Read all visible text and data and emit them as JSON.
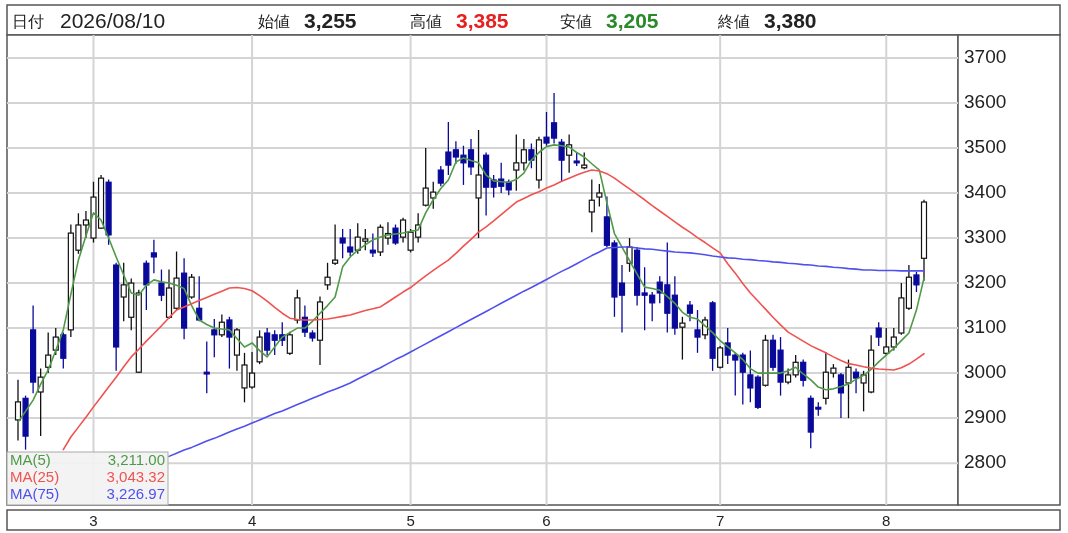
{
  "chart_data": {
    "type": "candlestick",
    "categories": [
      null,
      null,
      null,
      null,
      null,
      null,
      null,
      null,
      null,
      null,
      "3",
      null,
      null,
      null,
      null,
      null,
      null,
      null,
      null,
      null,
      null,
      null,
      null,
      null,
      null,
      null,
      null,
      null,
      null,
      null,
      null,
      "4",
      null,
      null,
      null,
      null,
      null,
      null,
      null,
      null,
      null,
      null,
      null,
      null,
      null,
      null,
      null,
      null,
      null,
      null,
      null,
      null,
      "5",
      null,
      null,
      null,
      null,
      null,
      null,
      null,
      null,
      null,
      null,
      null,
      null,
      null,
      null,
      null,
      null,
      null,
      "6",
      null,
      null,
      null,
      null,
      null,
      null,
      null,
      null,
      null,
      null,
      null,
      null,
      null,
      null,
      null,
      null,
      null,
      null,
      null,
      null,
      null,
      null,
      "7",
      null,
      null,
      null,
      null,
      null,
      null,
      null,
      null,
      null,
      null,
      null,
      null,
      null,
      null,
      null,
      null,
      null,
      null,
      null,
      null,
      null,
      "8",
      null,
      null,
      null,
      null,
      null
    ],
    "ohlc": [
      [
        2896,
        2985,
        2850,
        2936
      ],
      [
        2944,
        2950,
        2830,
        2860
      ],
      [
        3096,
        3150,
        2955,
        2980
      ],
      [
        2958,
        3010,
        2860,
        2991
      ],
      [
        3013,
        3090,
        3000,
        3040
      ],
      [
        3051,
        3100,
        3040,
        3080
      ],
      [
        3085,
        3090,
        3010,
        3033
      ],
      [
        3096,
        3330,
        3080,
        3311
      ],
      [
        3273,
        3355,
        3265,
        3329
      ],
      [
        3329,
        3360,
        3300,
        3340
      ],
      [
        3300,
        3425,
        3290,
        3391
      ],
      [
        3322,
        3440,
        3320,
        3433
      ],
      [
        3424,
        3430,
        3285,
        3307
      ],
      [
        3240,
        3245,
        3005,
        3058
      ],
      [
        3169,
        3245,
        3115,
        3196
      ],
      [
        3124,
        3210,
        3095,
        3200
      ],
      [
        3002,
        3185,
        3000,
        3178
      ],
      [
        3244,
        3250,
        3140,
        3196
      ],
      [
        3267,
        3296,
        3222,
        3258
      ],
      [
        3200,
        3230,
        3160,
        3173
      ],
      [
        3124,
        3230,
        3120,
        3189
      ],
      [
        3144,
        3270,
        3140,
        3211
      ],
      [
        3222,
        3255,
        3075,
        3100
      ],
      [
        3169,
        3220,
        3165,
        3213
      ],
      [
        3144,
        3215,
        3115,
        3118
      ],
      [
        3002,
        3070,
        2955,
        2998
      ],
      [
        3096,
        3120,
        3035,
        3085
      ],
      [
        3085,
        3130,
        3080,
        3113
      ],
      [
        3118,
        3125,
        3010,
        3080
      ],
      [
        3040,
        3100,
        3005,
        3096
      ],
      [
        2967,
        3045,
        2935,
        3018
      ],
      [
        2969,
        3047,
        2965,
        3000
      ],
      [
        3025,
        3095,
        3020,
        3080
      ],
      [
        3089,
        3100,
        3040,
        3051
      ],
      [
        3085,
        3095,
        3040,
        3073
      ],
      [
        3085,
        3113,
        3060,
        3073
      ],
      [
        3044,
        3092,
        3040,
        3085
      ],
      [
        3118,
        3185,
        3110,
        3167
      ],
      [
        3124,
        3150,
        3080,
        3091
      ],
      [
        3089,
        3095,
        3070,
        3078
      ],
      [
        3073,
        3170,
        3018,
        3158
      ],
      [
        3196,
        3245,
        3185,
        3213
      ],
      [
        3244,
        3330,
        3240,
        3251
      ],
      [
        3300,
        3320,
        3255,
        3289
      ],
      [
        3280,
        3320,
        3260,
        3269
      ],
      [
        3273,
        3333,
        3265,
        3302
      ],
      [
        3293,
        3320,
        3273,
        3298
      ],
      [
        3273,
        3310,
        3258,
        3267
      ],
      [
        3269,
        3330,
        3260,
        3324
      ],
      [
        3300,
        3335,
        3285,
        3310
      ],
      [
        3322,
        3330,
        3285,
        3289
      ],
      [
        3302,
        3345,
        3290,
        3340
      ],
      [
        3273,
        3320,
        3268,
        3313
      ],
      [
        3302,
        3355,
        3290,
        3329
      ],
      [
        3373,
        3500,
        3370,
        3411
      ],
      [
        3389,
        3425,
        3365,
        3402
      ],
      [
        3451,
        3460,
        3415,
        3422
      ],
      [
        3491,
        3558,
        3440,
        3462
      ],
      [
        3496,
        3515,
        3465,
        3480
      ],
      [
        3484,
        3505,
        3418,
        3467
      ],
      [
        3496,
        3520,
        3440,
        3458
      ],
      [
        3389,
        3540,
        3300,
        3440
      ],
      [
        3484,
        3490,
        3350,
        3413
      ],
      [
        3429,
        3440,
        3390,
        3413
      ],
      [
        3431,
        3467,
        3400,
        3415
      ],
      [
        3424,
        3430,
        3395,
        3407
      ],
      [
        3451,
        3530,
        3405,
        3467
      ],
      [
        3467,
        3520,
        3450,
        3496
      ],
      [
        3496,
        3510,
        3455,
        3473
      ],
      [
        3429,
        3525,
        3410,
        3518
      ],
      [
        3524,
        3580,
        3505,
        3511
      ],
      [
        3556,
        3622,
        3510,
        3522
      ],
      [
        3513,
        3520,
        3425,
        3473
      ],
      [
        3484,
        3530,
        3445,
        3507
      ],
      [
        3471,
        3490,
        3460,
        3467
      ],
      [
        3456,
        3490,
        3453,
        3462
      ],
      [
        3358,
        3430,
        3313,
        3384
      ],
      [
        3391,
        3420,
        3370,
        3400
      ],
      [
        3347,
        3392,
        3280,
        3284
      ],
      [
        3289,
        3295,
        3125,
        3169
      ],
      [
        3200,
        3240,
        3090,
        3173
      ],
      [
        3244,
        3300,
        3225,
        3280
      ],
      [
        3273,
        3280,
        3150,
        3173
      ],
      [
        3178,
        3235,
        3095,
        3173
      ],
      [
        3173,
        3180,
        3115,
        3156
      ],
      [
        3202,
        3215,
        3155,
        3178
      ],
      [
        3196,
        3290,
        3090,
        3133
      ],
      [
        3173,
        3215,
        3085,
        3100
      ],
      [
        3102,
        3125,
        3030,
        3111
      ],
      [
        3151,
        3160,
        3115,
        3133
      ],
      [
        3096,
        3140,
        3045,
        3080
      ],
      [
        3085,
        3125,
        3075,
        3118
      ],
      [
        3156,
        3160,
        3005,
        3033
      ],
      [
        3013,
        3060,
        3010,
        3056
      ],
      [
        3067,
        3100,
        3020,
        3040
      ],
      [
        3040,
        3045,
        2950,
        3029
      ],
      [
        3040,
        3045,
        2930,
        3002
      ],
      [
        2996,
        3050,
        2935,
        2967
      ],
      [
        2991,
        2995,
        2920,
        2924
      ],
      [
        2973,
        3085,
        2970,
        3073
      ],
      [
        3073,
        3085,
        3005,
        3013
      ],
      [
        3051,
        3080,
        2950,
        2980
      ],
      [
        2980,
        3010,
        2975,
        2996
      ],
      [
        2996,
        3040,
        2990,
        3024
      ],
      [
        3024,
        3030,
        2970,
        2984
      ],
      [
        2944,
        2950,
        2833,
        2869
      ],
      [
        2924,
        2935,
        2905,
        2920
      ],
      [
        2944,
        3047,
        2930,
        3002
      ],
      [
        3000,
        3020,
        2990,
        3011
      ],
      [
        2996,
        3000,
        2900,
        2956
      ],
      [
        2978,
        3030,
        2900,
        3013
      ],
      [
        3002,
        3010,
        2955,
        2989
      ],
      [
        2978,
        3005,
        2915,
        2996
      ],
      [
        2958,
        3084,
        2955,
        3051
      ],
      [
        3100,
        3113,
        3060,
        3080
      ],
      [
        3044,
        3100,
        3040,
        3058
      ],
      [
        3058,
        3100,
        3050,
        3080
      ],
      [
        3089,
        3200,
        3085,
        3167
      ],
      [
        3144,
        3240,
        3140,
        3213
      ],
      [
        3218,
        3225,
        3180,
        3196
      ],
      [
        3255,
        3385,
        3205,
        3380
      ]
    ],
    "series": [
      {
        "name": "MA(5)",
        "type": "line",
        "color": "#4f9a48",
        "values": [
          2891,
          2915,
          2940,
          2975,
          3007,
          3050,
          3096,
          3175,
          3251,
          3305,
          3356,
          3340,
          3300,
          3258,
          3218,
          3178,
          3173,
          3195,
          3207,
          3203,
          3200,
          3195,
          3188,
          3150,
          3118,
          3108,
          3100,
          3098,
          3096,
          3077,
          3058,
          3067,
          3050,
          3036,
          3058,
          3080,
          3090,
          3100,
          3100,
          3115,
          3133,
          3150,
          3169,
          3236,
          3258,
          3273,
          3285,
          3296,
          3302,
          3307,
          3309,
          3311,
          3315,
          3318,
          3356,
          3385,
          3410,
          3429,
          3469,
          3478,
          3472,
          3467,
          3440,
          3427,
          3425,
          3424,
          3430,
          3444,
          3473,
          3490,
          3503,
          3507,
          3505,
          3502,
          3490,
          3480,
          3465,
          3451,
          3378,
          3310,
          3280,
          3250,
          3220,
          3191,
          3188,
          3184,
          3170,
          3155,
          3135,
          3124,
          3120,
          3105,
          3090,
          3072,
          3058,
          3045,
          3030,
          3010,
          3000,
          3000,
          3000,
          3000,
          3005,
          3013,
          2998,
          2985,
          2969,
          2963,
          2965,
          2970,
          2976,
          2986,
          2995,
          3008,
          3025,
          3040,
          3055,
          3072,
          3089,
          3140,
          3211
        ]
      },
      {
        "name": "MA(25)",
        "type": "line",
        "color": "#ef5350",
        "values": [
          null,
          null,
          null,
          null,
          null,
          null,
          2830,
          2858,
          2880,
          2902,
          2925,
          2947,
          2969,
          2991,
          3014,
          3036,
          3053,
          3071,
          3088,
          3105,
          3123,
          3140,
          3147,
          3154,
          3161,
          3168,
          3175,
          3182,
          3189,
          3190,
          3188,
          3183,
          3172,
          3160,
          3146,
          3133,
          3122,
          3119,
          3118,
          3118,
          3119,
          3120,
          3123,
          3126,
          3129,
          3134,
          3139,
          3143,
          3147,
          3158,
          3169,
          3180,
          3190,
          3203,
          3216,
          3228,
          3240,
          3251,
          3266,
          3282,
          3297,
          3313,
          3325,
          3338,
          3352,
          3366,
          3380,
          3388,
          3396,
          3403,
          3411,
          3418,
          3426,
          3433,
          3440,
          3446,
          3451,
          3449,
          3443,
          3433,
          3421,
          3409,
          3397,
          3385,
          3372,
          3360,
          3348,
          3336,
          3324,
          3313,
          3301,
          3290,
          3278,
          3267,
          3243,
          3222,
          3199,
          3178,
          3160,
          3142,
          3124,
          3107,
          3091,
          3081,
          3071,
          3061,
          3053,
          3045,
          3036,
          3028,
          3021,
          3018,
          3014,
          3011,
          3009,
          3008,
          3007,
          3012,
          3020,
          3031,
          3043
        ]
      },
      {
        "name": "MA(75)",
        "type": "line",
        "color": "#5050ee",
        "values": [
          null,
          null,
          null,
          null,
          null,
          null,
          null,
          null,
          null,
          null,
          null,
          null,
          null,
          null,
          null,
          null,
          null,
          null,
          null,
          null,
          2815,
          2822,
          2829,
          2835,
          2842,
          2849,
          2855,
          2862,
          2869,
          2876,
          2882,
          2889,
          2896,
          2903,
          2910,
          2916,
          2923,
          2930,
          2937,
          2944,
          2951,
          2958,
          2964,
          2971,
          2978,
          2987,
          2995,
          3004,
          3012,
          3021,
          3030,
          3038,
          3047,
          3056,
          3065,
          3074,
          3083,
          3092,
          3101,
          3110,
          3119,
          3128,
          3137,
          3146,
          3155,
          3164,
          3173,
          3182,
          3190,
          3199,
          3208,
          3217,
          3226,
          3234,
          3243,
          3252,
          3261,
          3269,
          3278,
          3279,
          3280,
          3280,
          3278,
          3276,
          3275,
          3273,
          3271,
          3269,
          3268,
          3267,
          3265,
          3263,
          3260,
          3258,
          3256,
          3255,
          3253,
          3252,
          3250,
          3249,
          3247,
          3246,
          3244,
          3243,
          3241,
          3240,
          3238,
          3237,
          3235,
          3234,
          3232,
          3231,
          3229,
          3229,
          3228,
          3228,
          3228,
          3227,
          3227,
          3227,
          3227
        ]
      }
    ],
    "ylim": [
      2707,
      3751
    ],
    "yticks": [
      2800,
      2900,
      3000,
      3100,
      3200,
      3300,
      3400,
      3500,
      3600,
      3700
    ],
    "grid": true,
    "legend": "bottom left",
    "annotations": [
      "日付",
      "2026/08/10",
      "始値",
      "3,255",
      "高値",
      "3,385",
      "安値",
      "3,205",
      "終値",
      "3,380",
      "3,211.00",
      "3,043.32",
      "3,226.97"
    ]
  }
}
